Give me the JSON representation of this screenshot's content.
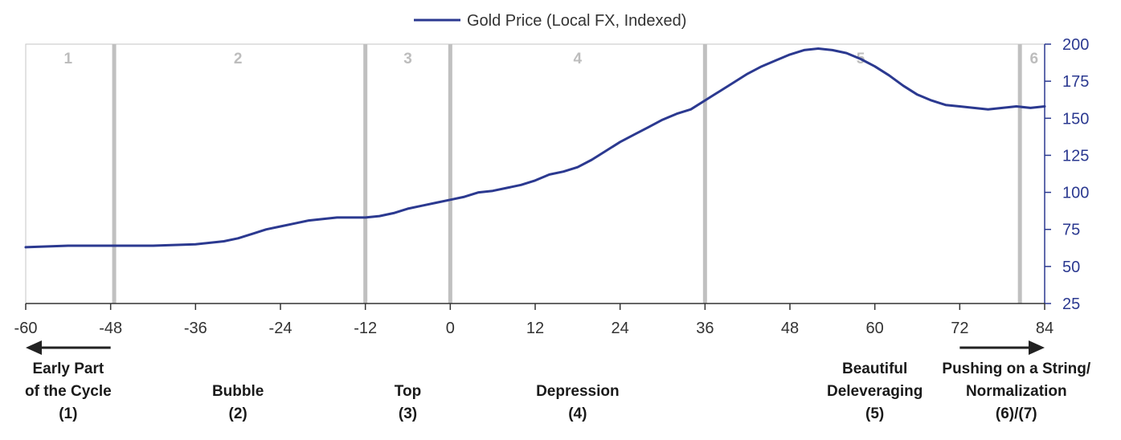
{
  "chart_data": {
    "type": "line",
    "title": "",
    "xlabel": "",
    "ylabel": "",
    "legend": {
      "position": "top-center",
      "label": "Gold Price (Local FX, Indexed)"
    },
    "x_ticks": [
      -60,
      -48,
      -36,
      -24,
      -12,
      0,
      12,
      24,
      36,
      48,
      60,
      72,
      84
    ],
    "y_ticks": [
      25,
      50,
      75,
      100,
      125,
      150,
      175,
      200
    ],
    "xlim": [
      -60,
      84
    ],
    "ylim": [
      25,
      200
    ],
    "y_axis_side": "right",
    "grid": false,
    "colors": {
      "series": "#2b3990",
      "y_ticks": "#2b3990",
      "phase_divider": "#c0c0c0",
      "phase_number": "#bdbdbd",
      "arrow": "#222222"
    },
    "phase_dividers": [
      -47.5,
      -12,
      0,
      36,
      80.5
    ],
    "phase_numbers": [
      {
        "x": -54,
        "label": "1"
      },
      {
        "x": -30,
        "label": "2"
      },
      {
        "x": -6,
        "label": "3"
      },
      {
        "x": 18,
        "label": "4"
      },
      {
        "x": 58,
        "label": "5"
      },
      {
        "x": 82.5,
        "label": "6"
      }
    ],
    "series": [
      {
        "name": "Gold Price (Local FX, Indexed)",
        "x": [
          -60,
          -54,
          -48,
          -42,
          -36,
          -32,
          -30,
          -28,
          -26,
          -24,
          -22,
          -20,
          -18,
          -16,
          -14,
          -12,
          -10,
          -8,
          -6,
          -4,
          -2,
          0,
          2,
          4,
          6,
          8,
          10,
          12,
          14,
          16,
          18,
          20,
          22,
          24,
          26,
          28,
          30,
          32,
          34,
          36,
          38,
          40,
          42,
          44,
          46,
          48,
          50,
          52,
          54,
          56,
          58,
          60,
          62,
          64,
          66,
          68,
          70,
          72,
          74,
          76,
          78,
          80,
          82,
          84
        ],
        "values": [
          63,
          64,
          64,
          64,
          65,
          67,
          69,
          72,
          75,
          77,
          79,
          81,
          82,
          83,
          83,
          83,
          84,
          86,
          89,
          91,
          93,
          95,
          97,
          100,
          101,
          103,
          105,
          108,
          112,
          114,
          117,
          122,
          128,
          134,
          139,
          144,
          149,
          153,
          156,
          162,
          168,
          174,
          180,
          185,
          189,
          193,
          196,
          197,
          196,
          194,
          190,
          185,
          179,
          172,
          166,
          162,
          159,
          158,
          157,
          156,
          157,
          158,
          157,
          158
        ]
      }
    ],
    "phase_labels": [
      {
        "x": -54,
        "lines": [
          "Early Part",
          "of the Cycle",
          "(1)"
        ]
      },
      {
        "x": -30,
        "lines": [
          "Bubble",
          "(2)"
        ]
      },
      {
        "x": -6,
        "lines": [
          "Top",
          "(3)"
        ]
      },
      {
        "x": 18,
        "lines": [
          "Depression",
          "(4)"
        ]
      },
      {
        "x": 60,
        "lines": [
          "Beautiful",
          "Deleveraging",
          "(5)"
        ]
      },
      {
        "x": 80,
        "lines": [
          "Pushing on a String/",
          "Normalization",
          "(6)/(7)"
        ]
      }
    ],
    "arrows": [
      {
        "direction": "left",
        "from": -48,
        "to": -60
      },
      {
        "direction": "right",
        "from": 72,
        "to": 84
      }
    ]
  }
}
